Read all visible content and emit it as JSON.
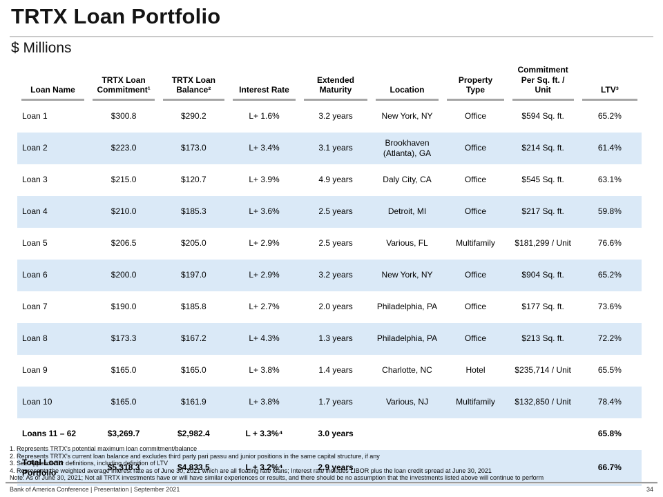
{
  "title": "TRTX Loan Portfolio",
  "subtitle": "$ Millions",
  "table": {
    "headers": [
      "Loan Name",
      "TRTX Loan\nCommitment¹",
      "TRTX Loan\nBalance²",
      "Interest Rate",
      "Extended\nMaturity",
      "Location",
      "Property\nType",
      "Commitment\nPer Sq. ft. / Unit",
      "LTV³"
    ],
    "rows": [
      [
        "Loan 1",
        "$300.8",
        "$290.2",
        "L+ 1.6%",
        "3.2 years",
        "New York, NY",
        "Office",
        "$594 Sq. ft.",
        "65.2%"
      ],
      [
        "Loan 2",
        "$223.0",
        "$173.0",
        "L+ 3.4%",
        "3.1 years",
        "Brookhaven\n(Atlanta), GA",
        "Office",
        "$214 Sq. ft.",
        "61.4%"
      ],
      [
        "Loan 3",
        "$215.0",
        "$120.7",
        "L+ 3.9%",
        "4.9 years",
        "Daly City, CA",
        "Office",
        "$545 Sq. ft.",
        "63.1%"
      ],
      [
        "Loan 4",
        "$210.0",
        "$185.3",
        "L+ 3.6%",
        "2.5 years",
        "Detroit, MI",
        "Office",
        "$217 Sq. ft.",
        "59.8%"
      ],
      [
        "Loan 5",
        "$206.5",
        "$205.0",
        "L+ 2.9%",
        "2.5 years",
        "Various, FL",
        "Multifamily",
        "$181,299 / Unit",
        "76.6%"
      ],
      [
        "Loan 6",
        "$200.0",
        "$197.0",
        "L+ 2.9%",
        "3.2 years",
        "New York, NY",
        "Office",
        "$904 Sq. ft.",
        "65.2%"
      ],
      [
        "Loan 7",
        "$190.0",
        "$185.8",
        "L+ 2.7%",
        "2.0 years",
        "Philadelphia, PA",
        "Office",
        "$177 Sq. ft.",
        "73.6%"
      ],
      [
        "Loan 8",
        "$173.3",
        "$167.2",
        "L+ 4.3%",
        "1.3 years",
        "Philadelphia, PA",
        "Office",
        "$213 Sq. ft.",
        "72.2%"
      ],
      [
        "Loan 9",
        "$165.0",
        "$165.0",
        "L+ 3.8%",
        "1.4 years",
        "Charlotte, NC",
        "Hotel",
        "$235,714 / Unit",
        "65.5%"
      ],
      [
        "Loan 10",
        "$165.0",
        "$161.9",
        "L+ 3.8%",
        "1.7 years",
        "Various, NJ",
        "Multifamily",
        "$132,850 / Unit",
        "78.4%"
      ],
      [
        "Loans 11 – 62",
        "$3,269.7",
        "$2,982.4",
        "L + 3.3%⁴",
        "3.0 years",
        "",
        "",
        "",
        "65.8%"
      ],
      [
        "Total Loan\nPortfolio",
        "$5,318.3",
        "$4,833.5",
        "L + 3.2%⁴",
        "2.9 years",
        "",
        "",
        "",
        "66.7%"
      ]
    ]
  },
  "footnotes": [
    "1. Represents TRTX’s potential maximum loan commitment/balance",
    "2. Represents TRTX’s current loan balance and excludes third party pari passu and junior positions in the same capital structure, if any",
    "3. See Appendix for definitions, including definition of LTV",
    "4. Represents the weighted average interest rate as of June 30, 2021 which are all floating rate loans; Interest rate includes LIBOR plus the loan credit spread at June 30, 2021",
    "Note: As of June 30, 2021; Not all TRTX investments have or will have similar experiences or results, and there should be no assumption that the investments listed above will continue to perform"
  ],
  "footer": {
    "left": "Bank of America Conference | Presentation | September 2021",
    "page": "34"
  },
  "colors": {
    "stripe": "#dae9f7",
    "header_rule": "#a6a6a6",
    "title_rule": "#c9c9c9"
  }
}
